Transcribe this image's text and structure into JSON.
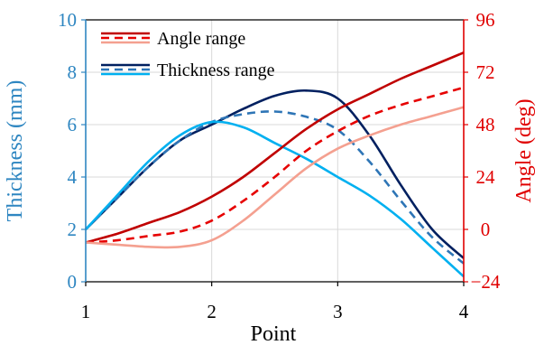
{
  "chart_data": {
    "type": "line",
    "xlabel": "Point",
    "ylabel_left": "Thickness (mm)",
    "ylabel_right": "Angle (deg)",
    "xlim": [
      1,
      4
    ],
    "ylim_left": [
      0,
      10
    ],
    "ylim_right": [
      -24,
      96
    ],
    "x_ticks": [
      "1",
      "2",
      "3",
      "4"
    ],
    "y_left_ticks": [
      "0",
      "2",
      "4",
      "6",
      "8",
      "10"
    ],
    "y_right_ticks": [
      "−24",
      "0",
      "24",
      "48",
      "72",
      "96"
    ],
    "grid": true,
    "legend": [
      {
        "label": "Angle range",
        "colors": [
          "#C00000",
          "#E60000",
          "#F4A090"
        ]
      },
      {
        "label": "Thickness range",
        "colors": [
          "#002060",
          "#2E75B6",
          "#00B0F0"
        ]
      }
    ],
    "colors": {
      "left_axis": "#2E86C1",
      "right_axis": "#E00000"
    },
    "series": [
      {
        "axis": "left",
        "color": "#002060",
        "dash": "solid",
        "x": [
          1,
          1.25,
          1.5,
          1.75,
          2,
          2.25,
          2.5,
          2.75,
          3,
          3.25,
          3.5,
          3.75,
          4
        ],
        "y": [
          2.0,
          3.2,
          4.4,
          5.4,
          6.0,
          6.6,
          7.1,
          7.3,
          7.0,
          5.6,
          3.7,
          2.0,
          0.9
        ]
      },
      {
        "axis": "left",
        "color": "#2E75B6",
        "dash": "dashed",
        "x": [
          1,
          1.25,
          1.5,
          1.75,
          2,
          2.25,
          2.5,
          2.75,
          3,
          3.25,
          3.5,
          3.75,
          4
        ],
        "y": [
          2.0,
          3.2,
          4.4,
          5.4,
          6.1,
          6.4,
          6.5,
          6.3,
          5.8,
          4.6,
          3.1,
          1.7,
          0.7
        ]
      },
      {
        "axis": "left",
        "color": "#00B0F0",
        "dash": "solid",
        "x": [
          1,
          1.25,
          1.5,
          1.75,
          2,
          2.25,
          2.5,
          2.75,
          3,
          3.25,
          3.5,
          3.75,
          4
        ],
        "y": [
          2.0,
          3.3,
          4.6,
          5.6,
          6.1,
          5.9,
          5.3,
          4.7,
          4.0,
          3.3,
          2.4,
          1.3,
          0.2
        ]
      },
      {
        "axis": "right",
        "color": "#C00000",
        "dash": "solid",
        "x": [
          1,
          1.25,
          1.5,
          1.75,
          2,
          2.25,
          2.5,
          2.75,
          3,
          3.25,
          3.5,
          3.75,
          4
        ],
        "y": [
          -6,
          -2,
          3,
          8,
          15,
          24,
          35,
          46,
          55,
          62,
          69,
          75,
          81
        ]
      },
      {
        "axis": "right",
        "color": "#E60000",
        "dash": "dashed",
        "x": [
          1,
          1.25,
          1.5,
          1.75,
          2,
          2.25,
          2.5,
          2.75,
          3,
          3.25,
          3.5,
          3.75,
          4
        ],
        "y": [
          -6,
          -5,
          -3,
          -1,
          4,
          13,
          24,
          36,
          45,
          52,
          57,
          61,
          65
        ]
      },
      {
        "axis": "right",
        "color": "#F4A090",
        "dash": "solid",
        "x": [
          1,
          1.25,
          1.5,
          1.75,
          2,
          2.25,
          2.5,
          2.75,
          3,
          3.25,
          3.5,
          3.75,
          4
        ],
        "y": [
          -6,
          -7,
          -8,
          -8,
          -5,
          4,
          16,
          28,
          37,
          43,
          48,
          52,
          56
        ]
      }
    ]
  }
}
